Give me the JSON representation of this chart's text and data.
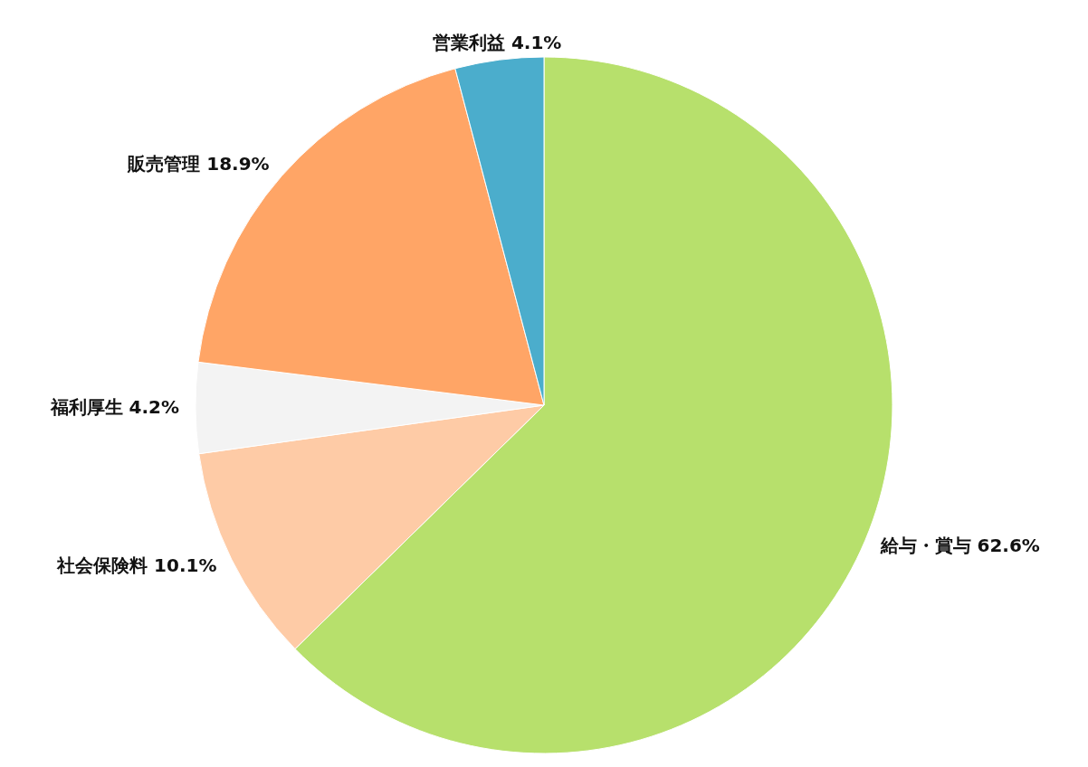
{
  "chart_data": {
    "type": "pie",
    "categories": [
      "給与・賞与",
      "社会保険料",
      "福利厚生",
      "販売管理",
      "営業利益"
    ],
    "values": [
      62.6,
      10.1,
      4.2,
      18.9,
      4.1
    ],
    "value_labels": [
      "62.6%",
      "10.1%",
      "4.2%",
      "18.9%",
      "4.1%"
    ],
    "colors": [
      "#b7e06c",
      "#fecba6",
      "#f3f3f3",
      "#ffa566",
      "#4badcc"
    ]
  }
}
